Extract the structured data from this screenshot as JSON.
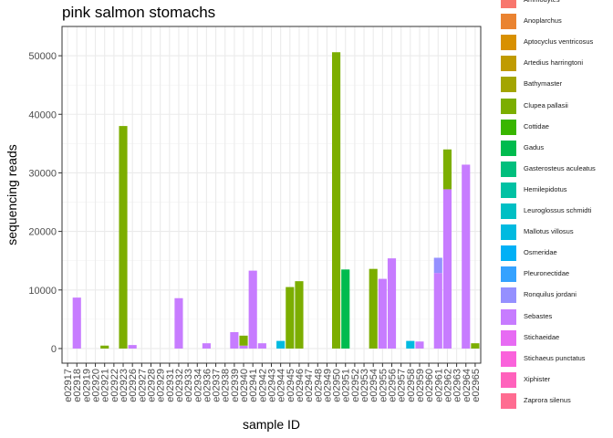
{
  "chart_data": {
    "type": "bar",
    "stacked": true,
    "title": "pink salmon stomachs",
    "xlabel": "sample ID",
    "ylabel": "sequencing reads",
    "ylim": [
      -2500,
      55000
    ],
    "yticks": [
      0,
      10000,
      20000,
      30000,
      40000,
      50000
    ],
    "grid": true,
    "legend_position": "right",
    "categories": [
      "e02917",
      "e02918",
      "e02919",
      "e02920",
      "e02921",
      "e02922",
      "e02923",
      "e02926",
      "e02927",
      "e02928",
      "e02929",
      "e02931",
      "e02932",
      "e02933",
      "e02934",
      "e02936",
      "e02937",
      "e02938",
      "e02939",
      "e02940",
      "e02941",
      "e02942",
      "e02943",
      "e02944",
      "e02945",
      "e02946",
      "e02947",
      "e02948",
      "e02949",
      "e02950",
      "e02951",
      "e02952",
      "e02953",
      "e02954",
      "e02955",
      "e02956",
      "e02957",
      "e02958",
      "e02959",
      "e02960",
      "e02961",
      "e02962",
      "e02963",
      "e02964",
      "e02965"
    ],
    "x_tick_labels": [
      "e02917",
      "e02918",
      "e02919",
      "e02920",
      "e02921",
      "e02922",
      "e02923",
      "e02926",
      "e02927",
      "e02928",
      "e02929",
      "e02931",
      "e02932",
      "e02933",
      "e02934",
      "e02936",
      "e02937",
      "e02938",
      "e02939",
      "e02940",
      "e02941",
      "e02942",
      "e02943",
      "e02944",
      "e02945",
      "e02946",
      "e02947",
      "e02948",
      "e02949",
      "e02950",
      "e02951",
      "e02952",
      "e02953",
      "e02954",
      "e02955",
      "e02956",
      "e02957",
      "e02958",
      "e02959",
      "e02960",
      "e02961",
      "e02962",
      "e02963",
      "e02964",
      "e02965"
    ],
    "series": [
      {
        "name": "Ammodytes",
        "color": "#F8766D",
        "values": [
          0,
          0,
          0,
          0,
          0,
          0,
          0,
          0,
          0,
          0,
          0,
          0,
          0,
          0,
          0,
          0,
          0,
          0,
          0,
          0,
          0,
          0,
          0,
          0,
          0,
          0,
          0,
          0,
          0,
          0,
          0,
          0,
          0,
          0,
          0,
          0,
          0,
          0,
          0,
          0,
          0,
          0,
          0,
          0,
          0
        ]
      },
      {
        "name": "Anoplarchus",
        "color": "#EA8331",
        "values": [
          0,
          0,
          0,
          0,
          0,
          0,
          0,
          0,
          0,
          0,
          0,
          0,
          0,
          0,
          0,
          0,
          0,
          0,
          0,
          0,
          0,
          0,
          0,
          0,
          0,
          0,
          0,
          0,
          0,
          0,
          0,
          0,
          0,
          0,
          0,
          0,
          0,
          0,
          0,
          0,
          0,
          0,
          0,
          0,
          0
        ]
      },
      {
        "name": "Aptocyclus ventricosus",
        "color": "#D89000",
        "values": [
          0,
          0,
          0,
          0,
          0,
          0,
          0,
          0,
          0,
          0,
          0,
          0,
          0,
          0,
          0,
          0,
          0,
          0,
          0,
          0,
          0,
          0,
          0,
          0,
          0,
          0,
          0,
          0,
          0,
          0,
          0,
          0,
          0,
          0,
          0,
          0,
          0,
          0,
          0,
          0,
          0,
          0,
          0,
          0,
          0
        ]
      },
      {
        "name": "Artedius harringtoni",
        "color": "#C09B00",
        "values": [
          0,
          0,
          0,
          0,
          0,
          0,
          0,
          0,
          0,
          0,
          0,
          0,
          0,
          0,
          0,
          0,
          0,
          0,
          0,
          0,
          0,
          0,
          0,
          0,
          0,
          0,
          0,
          0,
          0,
          0,
          0,
          0,
          0,
          0,
          0,
          0,
          0,
          0,
          0,
          0,
          0,
          0,
          0,
          0,
          0
        ]
      },
      {
        "name": "Bathymaster",
        "color": "#A3A500",
        "values": [
          0,
          0,
          0,
          0,
          0,
          0,
          0,
          0,
          0,
          0,
          0,
          0,
          0,
          0,
          0,
          0,
          0,
          0,
          0,
          0,
          0,
          0,
          0,
          0,
          0,
          0,
          0,
          0,
          0,
          0,
          0,
          0,
          0,
          0,
          0,
          0,
          0,
          0,
          0,
          0,
          0,
          0,
          0,
          0,
          0
        ]
      },
      {
        "name": "Clupea pallasii",
        "color": "#7CAE00",
        "values": [
          0,
          0,
          0,
          0,
          500,
          0,
          38000,
          0,
          0,
          0,
          0,
          0,
          0,
          0,
          0,
          0,
          0,
          0,
          0,
          1700,
          0,
          0,
          0,
          0,
          10500,
          11500,
          0,
          0,
          0,
          50600,
          0,
          0,
          0,
          13600,
          0,
          0,
          0,
          0,
          0,
          0,
          0,
          6800,
          0,
          0,
          900
        ]
      },
      {
        "name": "Cottidae",
        "color": "#39B600",
        "values": [
          0,
          0,
          0,
          0,
          0,
          0,
          0,
          0,
          0,
          0,
          0,
          0,
          0,
          0,
          0,
          0,
          0,
          0,
          0,
          0,
          0,
          0,
          0,
          0,
          0,
          0,
          0,
          0,
          0,
          0,
          0,
          0,
          0,
          0,
          0,
          0,
          0,
          0,
          0,
          0,
          0,
          0,
          0,
          0,
          0
        ]
      },
      {
        "name": "Gadus",
        "color": "#00BB4E",
        "values": [
          0,
          0,
          0,
          0,
          0,
          0,
          0,
          0,
          0,
          0,
          0,
          0,
          0,
          0,
          0,
          0,
          0,
          0,
          0,
          0,
          0,
          0,
          0,
          0,
          0,
          0,
          0,
          0,
          0,
          0,
          13500,
          0,
          0,
          0,
          0,
          0,
          0,
          0,
          0,
          0,
          0,
          0,
          0,
          0,
          0
        ]
      },
      {
        "name": "Gasterosteus aculeatus",
        "color": "#00BF7D",
        "values": [
          0,
          0,
          0,
          0,
          0,
          0,
          0,
          0,
          0,
          0,
          0,
          0,
          0,
          0,
          0,
          0,
          0,
          0,
          0,
          0,
          0,
          0,
          0,
          0,
          0,
          0,
          0,
          0,
          0,
          0,
          0,
          0,
          0,
          0,
          0,
          0,
          0,
          0,
          0,
          0,
          0,
          0,
          0,
          0,
          0
        ]
      },
      {
        "name": "Hemilepidotus",
        "color": "#00C1A3",
        "values": [
          0,
          0,
          0,
          0,
          0,
          0,
          0,
          0,
          0,
          0,
          0,
          0,
          0,
          0,
          0,
          0,
          0,
          0,
          0,
          0,
          0,
          0,
          0,
          0,
          0,
          0,
          0,
          0,
          0,
          0,
          0,
          0,
          0,
          0,
          0,
          0,
          0,
          0,
          0,
          0,
          0,
          0,
          0,
          0,
          0
        ]
      },
      {
        "name": "Leuroglossus schmidti",
        "color": "#00BFC4",
        "values": [
          0,
          0,
          0,
          0,
          0,
          0,
          0,
          0,
          0,
          0,
          0,
          0,
          0,
          0,
          0,
          0,
          0,
          0,
          0,
          0,
          0,
          0,
          0,
          0,
          0,
          0,
          0,
          0,
          0,
          0,
          0,
          0,
          0,
          0,
          0,
          0,
          0,
          0,
          0,
          0,
          0,
          0,
          0,
          0,
          0
        ]
      },
      {
        "name": "Mallotus villosus",
        "color": "#00BAE0",
        "values": [
          0,
          0,
          0,
          0,
          0,
          0,
          0,
          0,
          0,
          0,
          0,
          0,
          0,
          0,
          0,
          0,
          0,
          0,
          0,
          0,
          0,
          0,
          0,
          1300,
          0,
          0,
          0,
          0,
          0,
          0,
          0,
          0,
          0,
          0,
          0,
          0,
          0,
          1300,
          0,
          0,
          0,
          0,
          0,
          0,
          0
        ]
      },
      {
        "name": "Osmeridae",
        "color": "#00B0F6",
        "values": [
          0,
          0,
          0,
          0,
          0,
          0,
          0,
          0,
          0,
          0,
          0,
          0,
          0,
          0,
          0,
          0,
          0,
          0,
          0,
          0,
          0,
          0,
          0,
          0,
          0,
          0,
          0,
          0,
          0,
          0,
          0,
          0,
          0,
          0,
          0,
          0,
          0,
          0,
          0,
          0,
          0,
          0,
          0,
          0,
          0
        ]
      },
      {
        "name": "Pleuronectidae",
        "color": "#35A2FF",
        "values": [
          0,
          0,
          0,
          0,
          0,
          0,
          0,
          0,
          0,
          0,
          0,
          0,
          0,
          0,
          0,
          0,
          0,
          0,
          0,
          0,
          0,
          0,
          0,
          0,
          0,
          0,
          0,
          0,
          0,
          0,
          0,
          0,
          0,
          0,
          0,
          0,
          0,
          0,
          0,
          0,
          0,
          0,
          0,
          0,
          0
        ]
      },
      {
        "name": "Ronquilus jordani",
        "color": "#9590FF",
        "values": [
          0,
          0,
          0,
          0,
          0,
          0,
          0,
          0,
          0,
          0,
          0,
          0,
          0,
          0,
          0,
          0,
          0,
          0,
          0,
          0,
          0,
          0,
          0,
          0,
          0,
          0,
          0,
          0,
          0,
          0,
          0,
          0,
          0,
          0,
          0,
          0,
          0,
          0,
          0,
          0,
          2600,
          0,
          0,
          0,
          0
        ]
      },
      {
        "name": "Sebastes",
        "color": "#C77CFF",
        "values": [
          0,
          8700,
          0,
          0,
          0,
          0,
          0,
          600,
          0,
          0,
          0,
          0,
          8600,
          0,
          0,
          900,
          0,
          0,
          2800,
          500,
          13300,
          900,
          0,
          0,
          0,
          0,
          0,
          0,
          0,
          0,
          0,
          0,
          0,
          0,
          11900,
          15400,
          0,
          0,
          1200,
          0,
          12900,
          27200,
          0,
          31400,
          0
        ]
      },
      {
        "name": "Stichaeidae",
        "color": "#E76BF3",
        "values": [
          0,
          0,
          0,
          0,
          0,
          0,
          0,
          0,
          0,
          0,
          0,
          0,
          0,
          0,
          0,
          0,
          0,
          0,
          0,
          0,
          0,
          0,
          0,
          0,
          0,
          0,
          0,
          0,
          0,
          0,
          0,
          0,
          0,
          0,
          0,
          0,
          0,
          0,
          0,
          0,
          0,
          0,
          0,
          0,
          0
        ]
      },
      {
        "name": "Stichaeus punctatus",
        "color": "#FA62DB",
        "values": [
          0,
          0,
          0,
          0,
          0,
          0,
          0,
          0,
          0,
          0,
          0,
          0,
          0,
          0,
          0,
          0,
          0,
          0,
          0,
          0,
          0,
          0,
          0,
          0,
          0,
          0,
          0,
          0,
          0,
          0,
          0,
          0,
          0,
          0,
          0,
          0,
          0,
          0,
          0,
          0,
          0,
          0,
          0,
          0,
          0
        ]
      },
      {
        "name": "Xiphister",
        "color": "#FF62BC",
        "values": [
          0,
          0,
          0,
          0,
          0,
          0,
          0,
          0,
          0,
          0,
          0,
          0,
          0,
          0,
          0,
          0,
          0,
          0,
          0,
          0,
          0,
          0,
          0,
          0,
          0,
          0,
          0,
          0,
          0,
          0,
          0,
          0,
          0,
          0,
          0,
          0,
          0,
          0,
          0,
          0,
          0,
          0,
          0,
          0,
          0
        ]
      },
      {
        "name": "Zaprora silenus",
        "color": "#FF6C91",
        "values": [
          0,
          0,
          0,
          0,
          0,
          0,
          0,
          0,
          0,
          0,
          0,
          0,
          0,
          0,
          0,
          0,
          0,
          0,
          0,
          0,
          0,
          0,
          0,
          0,
          0,
          0,
          0,
          0,
          0,
          0,
          0,
          0,
          0,
          0,
          0,
          0,
          0,
          0,
          0,
          0,
          0,
          0,
          0,
          0,
          0
        ]
      }
    ]
  }
}
